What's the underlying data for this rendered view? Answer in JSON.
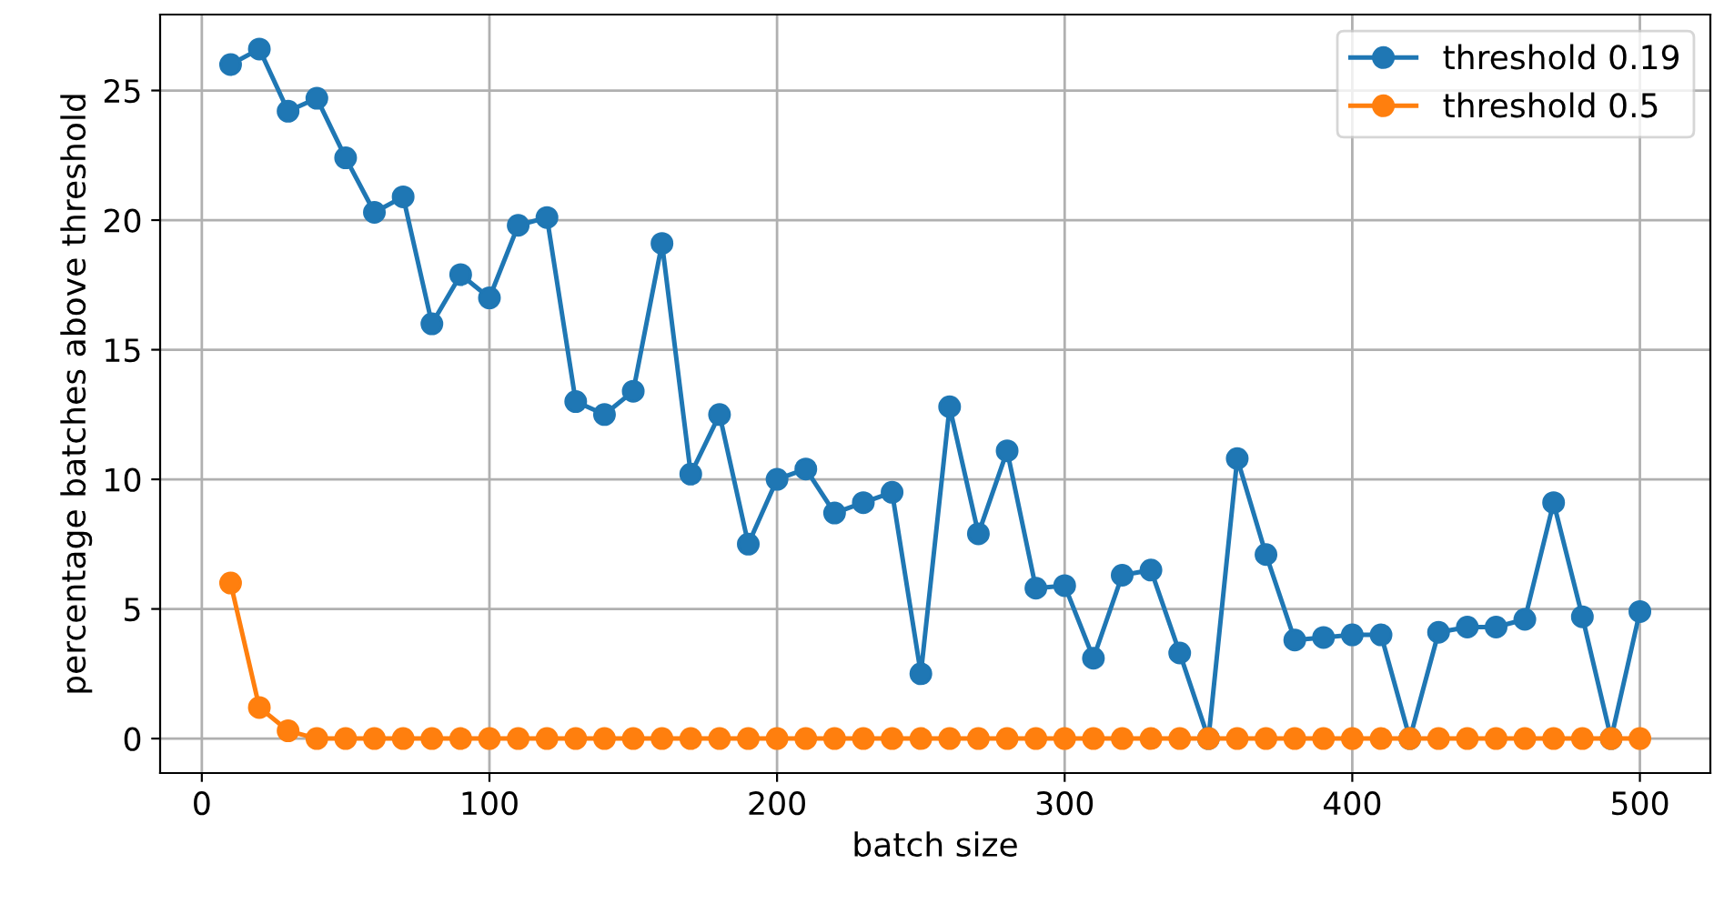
{
  "chart_data": {
    "type": "line",
    "xlabel": "batch size",
    "ylabel": "percentage batches above threshold",
    "x": [
      10,
      20,
      30,
      40,
      50,
      60,
      70,
      80,
      90,
      100,
      110,
      120,
      130,
      140,
      150,
      160,
      170,
      180,
      190,
      200,
      210,
      220,
      230,
      240,
      250,
      260,
      270,
      280,
      290,
      300,
      310,
      320,
      330,
      340,
      350,
      360,
      370,
      380,
      390,
      400,
      410,
      420,
      430,
      440,
      450,
      460,
      470,
      480,
      490,
      500
    ],
    "series": [
      {
        "name": "threshold 0.19",
        "color": "#1f77b4",
        "values": [
          26.0,
          26.6,
          24.2,
          24.7,
          22.4,
          20.3,
          20.9,
          16.0,
          17.9,
          17.0,
          19.8,
          20.1,
          13.0,
          12.5,
          13.4,
          19.1,
          10.2,
          12.5,
          7.5,
          10.0,
          10.4,
          8.7,
          9.1,
          9.5,
          2.5,
          12.8,
          7.9,
          11.1,
          5.8,
          5.9,
          3.1,
          6.3,
          6.5,
          3.3,
          0,
          10.8,
          7.1,
          3.8,
          3.9,
          4.0,
          4.0,
          0,
          4.1,
          4.3,
          4.3,
          4.6,
          9.1,
          4.7,
          0,
          4.9
        ]
      },
      {
        "name": "threshold 0.5",
        "color": "#ff7f0e",
        "values": [
          6.0,
          1.2,
          0.3,
          0,
          0,
          0,
          0,
          0,
          0,
          0,
          0,
          0,
          0,
          0,
          0,
          0,
          0,
          0,
          0,
          0,
          0,
          0,
          0,
          0,
          0,
          0,
          0,
          0,
          0,
          0,
          0,
          0,
          0,
          0,
          0,
          0,
          0,
          0,
          0,
          0,
          0,
          0,
          0,
          0,
          0,
          0,
          0,
          0,
          0,
          0
        ]
      }
    ],
    "xlim": [
      -14.5,
      524.5
    ],
    "ylim": [
      -1.33,
      27.93
    ],
    "xticks": [
      0,
      100,
      200,
      300,
      400,
      500
    ],
    "yticks": [
      0,
      5,
      10,
      15,
      20,
      25
    ],
    "grid": true,
    "legend": "top right",
    "marker": "circle",
    "line_style": "solid"
  }
}
